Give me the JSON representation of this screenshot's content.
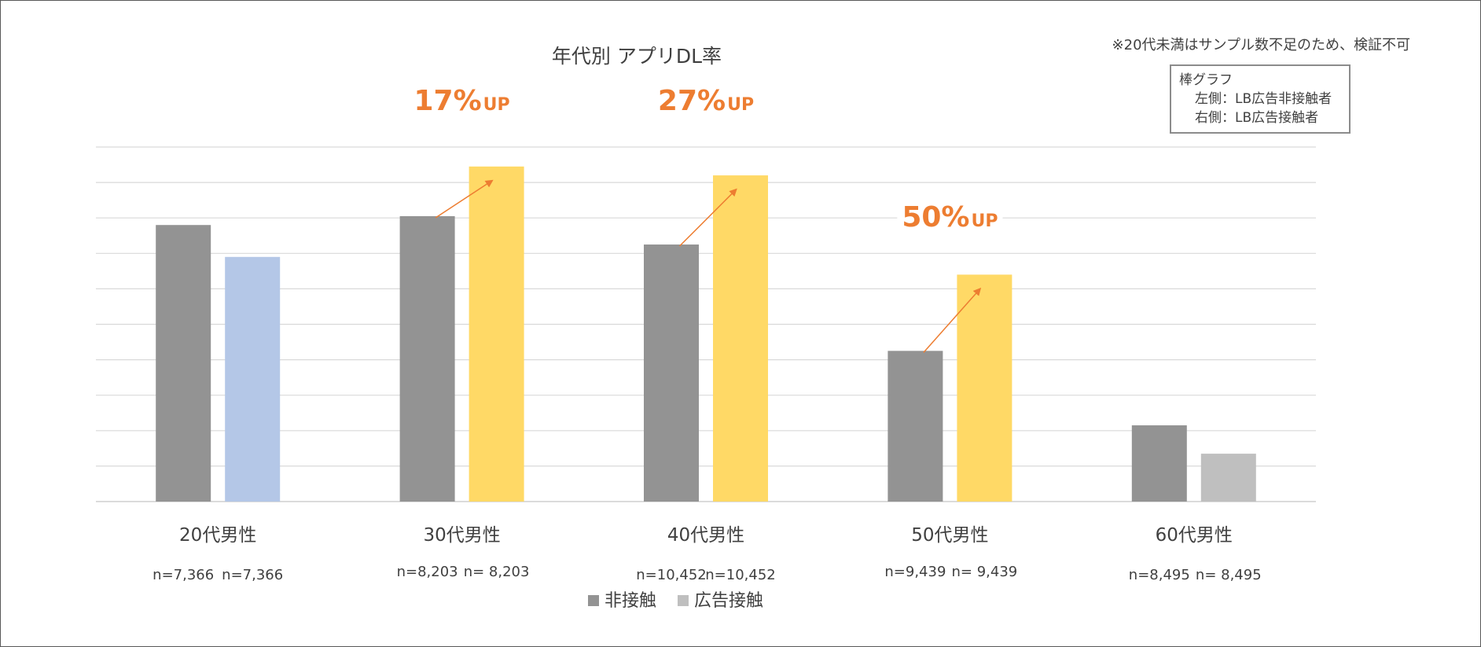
{
  "chart_data": {
    "type": "bar",
    "title": "年代別 アプリDL率",
    "categories": [
      "20代男性",
      "30代男性",
      "40代男性",
      "50代男性",
      "60代男性"
    ],
    "series": [
      {
        "name": "非接触",
        "values": [
          7.8,
          8.05,
          7.25,
          4.25,
          2.15
        ]
      },
      {
        "name": "広告接触",
        "values": [
          6.9,
          9.45,
          9.2,
          6.4,
          1.35
        ]
      }
    ],
    "sample_labels": [
      [
        "n=7,366",
        "n=7,366"
      ],
      [
        "n=8,203",
        "n=  8,203"
      ],
      [
        "n=10,452",
        "n=10,452"
      ],
      [
        "n=9,439",
        "n=  9,439"
      ],
      [
        "n=8,495",
        "n=  8,495"
      ]
    ],
    "ylim": [
      0,
      10
    ],
    "grid": true,
    "legend_placement": "bottom",
    "colors": {
      "non_contact": "#939393",
      "group_1_contact": "#b4c7e7",
      "group_2_to_4_contact": "#ffd966",
      "group_5_contact": "#bfbfbf",
      "legend_non_contact": "#939393",
      "legend_contact": "#bfbfbf",
      "annotation": "#ed7d31",
      "gridline": "#d9d9d9"
    },
    "annotations": [
      {
        "category_index": 1,
        "pct": "17%",
        "suffix": "UP"
      },
      {
        "category_index": 2,
        "pct": "27%",
        "suffix": "UP"
      },
      {
        "category_index": 3,
        "pct": "50%",
        "suffix": "UP"
      }
    ]
  },
  "note": "※20代未満はサンプル数不足のため、検証不可",
  "legend_box": {
    "title": "棒グラフ",
    "left": "左側：LB広告非接触者",
    "right": "右側：LB広告接触者"
  }
}
